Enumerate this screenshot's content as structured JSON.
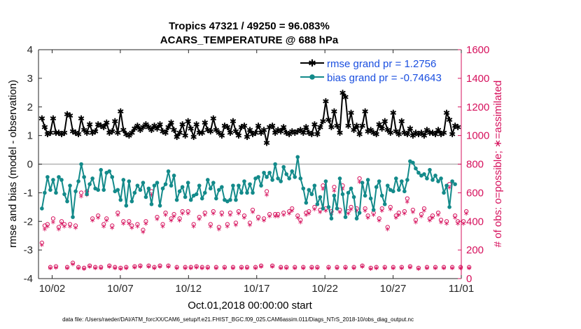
{
  "chart_data": {
    "type": "line",
    "title_line1": "Tropics 47321 / 49250 = 96.083%",
    "title_line2": "ACARS_TEMPERATURE @ 688 hPa",
    "xlabel": "Oct.01,2018 00:00:00 start",
    "ylabel_left": "rmse and bias (model - observation)",
    "ylabel_right": "# of obs: o=possible; ∗=assimilated",
    "xlim": [
      0,
      31
    ],
    "ylim_left": [
      -4,
      4
    ],
    "ylim_right": [
      0,
      1600
    ],
    "x_tick_values": [
      1,
      6,
      11,
      16,
      21,
      26,
      31
    ],
    "x_tick_labels": [
      "10/02",
      "10/07",
      "10/12",
      "10/17",
      "10/22",
      "10/27",
      "11/01"
    ],
    "y_left_ticks": [
      "4",
      "3",
      "2",
      "1",
      "0",
      "-1",
      "-2",
      "-3",
      "-4"
    ],
    "y_right_ticks": [
      "1600",
      "1400",
      "1200",
      "1000",
      "800",
      "600",
      "400",
      "200",
      "0"
    ],
    "zero_line": 0,
    "colors": {
      "rmse": "#000000",
      "bias": "#138a8a",
      "obs": "#d6105c",
      "legend_text": "#1a4fe0",
      "right_axis": "#d6105c"
    },
    "series": [
      {
        "name": "rmse grand pr = 1.2756",
        "role": "rmse",
        "values": [
          1.6,
          1.3,
          1.05,
          1.1,
          1.6,
          1.1,
          1.1,
          1.05,
          1.1,
          1.75,
          1.7,
          1.15,
          1.1,
          1.05,
          1.6,
          1.2,
          1.1,
          1.4,
          1.1,
          1.15,
          1.4,
          1.35,
          1.3,
          1.45,
          1.1,
          1.15,
          1.5,
          1.1,
          1.85,
          1.2,
          1.05,
          1.0,
          1.1,
          1.25,
          1.35,
          1.2,
          1.3,
          1.4,
          1.3,
          1.2,
          1.35,
          1.25,
          1.4,
          1.15,
          1.1,
          1.3,
          1.45,
          1.2,
          0.95,
          1.1,
          1.4,
          1.0,
          1.5,
          1.25,
          0.95,
          1.4,
          1.1,
          1.1,
          1.45,
          1.2,
          1.15,
          1.6,
          1.2,
          1.1,
          1.0,
          1.35,
          1.3,
          1.1,
          1.5,
          1.15,
          1.0,
          1.3,
          1.35,
          0.95,
          1.2,
          1.05,
          1.1,
          1.35,
          1.1,
          1.2,
          0.75,
          1.3,
          1.35,
          1.1,
          1.2,
          1.15,
          1.3,
          1.1,
          1.05,
          1.15,
          1.1,
          1.15,
          1.2,
          1.1,
          1.3,
          1.1,
          1.05,
          1.4,
          1.05,
          1.3,
          1.5,
          2.2,
          1.55,
          1.3,
          1.85,
          1.35,
          1.1,
          2.5,
          2.35,
          1.35,
          1.8,
          1.2,
          1.35,
          1.05,
          1.35,
          1.85,
          1.15,
          1.2,
          1.1,
          1.05,
          1.4,
          1.25,
          1.5,
          1.2,
          1.1,
          1.8,
          1.15,
          1.05,
          1.5,
          1.1,
          1.05,
          1.25,
          1.0,
          1.1,
          1.05,
          1.1,
          1.0,
          1.2,
          1.1,
          1.1,
          1.05,
          1.2,
          1.05,
          1.1,
          1.8,
          1.55,
          1.05,
          1.35,
          1.3
        ]
      },
      {
        "name": "bias grand pr = -0.74643",
        "role": "bias",
        "values": [
          -1.55,
          -1.0,
          -0.45,
          -0.9,
          -0.55,
          -1.0,
          -0.45,
          -0.55,
          -1.05,
          -1.3,
          -0.75,
          -1.85,
          -0.95,
          -0.6,
          0.0,
          -0.45,
          -1.05,
          -0.7,
          -0.5,
          -0.85,
          -0.9,
          -0.2,
          -0.9,
          -0.3,
          -0.25,
          -0.45,
          -0.95,
          -0.9,
          -1.25,
          -0.55,
          -1.45,
          -0.6,
          -1.3,
          -1.0,
          -0.75,
          -0.9,
          -0.65,
          -1.15,
          -0.85,
          -1.4,
          -0.75,
          -0.65,
          -1.45,
          -0.85,
          -0.7,
          -0.25,
          -0.75,
          -0.4,
          -1.25,
          -0.95,
          -0.8,
          -1.15,
          -0.65,
          -1.25,
          -1.1,
          -1.05,
          -0.75,
          -1.2,
          -1.0,
          -0.55,
          -0.85,
          -0.65,
          -1.2,
          -0.9,
          -0.8,
          -1.25,
          -1.3,
          -1.25,
          -0.75,
          -1.25,
          -0.75,
          -1.0,
          -0.6,
          -1.0,
          -0.7,
          -1.0,
          -0.5,
          -0.45,
          -0.75,
          -0.3,
          -0.45,
          -0.3,
          -0.55,
          0.0,
          -0.5,
          -0.6,
          -0.1,
          -0.35,
          -0.5,
          -0.25,
          -0.45,
          0.25,
          -0.5,
          -0.85,
          -1.35,
          -0.9,
          -1.05,
          -0.75,
          -1.4,
          -1.15,
          -1.55,
          -0.6,
          -1.5,
          -1.9,
          -1.1,
          -1.55,
          -0.5,
          -1.05,
          -1.85,
          -1.0,
          -0.85,
          -1.15,
          -1.9,
          -1.7,
          -0.65,
          -1.1,
          -0.55,
          -1.2,
          -1.6,
          -0.8,
          -0.6,
          -1.1,
          -1.4,
          -0.75,
          -0.9,
          -0.95,
          -0.5,
          -0.9,
          -0.6,
          -0.95,
          -0.55,
          0.1,
          0.05,
          -0.15,
          -0.3,
          -0.4,
          -0.35,
          -0.5,
          -0.2,
          -0.55,
          -0.4,
          -0.6,
          -0.5,
          -1.0,
          -0.75,
          -1.5,
          -0.6,
          -0.7
        ]
      },
      {
        "name": "obs possible (o)",
        "role": "obs_possible",
        "values": [
          250,
          370,
          380,
          80,
          420,
          85,
          360,
          400,
          380,
          80,
          380,
          110,
          370,
          80,
          600,
          75,
          610,
          90,
          420,
          80,
          440,
          80,
          380,
          420,
          90,
          370,
          80,
          460,
          75,
          400,
          80,
          400,
          370,
          85,
          380,
          90,
          340,
          400,
          90,
          610,
          80,
          430,
          90,
          380,
          460,
          90,
          420,
          450,
          80,
          420,
          470,
          80,
          470,
          80,
          380,
          85,
          430,
          80,
          460,
          80,
          380,
          470,
          80,
          360,
          460,
          80,
          380,
          460,
          80,
          390,
          470,
          80,
          440,
          80,
          390,
          480,
          80,
          430,
          90,
          420,
          610,
          450,
          90,
          450,
          450,
          80,
          460,
          80,
          470,
          490,
          80,
          440,
          410,
          80,
          460,
          470,
          80,
          500,
          80,
          480,
          650,
          490,
          80,
          470,
          640,
          80,
          480,
          650,
          80,
          470,
          500,
          80,
          490,
          700,
          90,
          490,
          440,
          75,
          460,
          80,
          420,
          490,
          80,
          360,
          500,
          80,
          440,
          460,
          80,
          470,
          560,
          85,
          480,
          410,
          75,
          450,
          490,
          80,
          420,
          440,
          80,
          460,
          410,
          80,
          400,
          660,
          80,
          440,
          400,
          80,
          400,
          470,
          80
        ]
      },
      {
        "name": "obs assimilated (∗)",
        "role": "obs_assimilated",
        "values": [
          240,
          350,
          370,
          78,
          400,
          80,
          350,
          390,
          370,
          78,
          370,
          105,
          360,
          78,
          580,
          73,
          590,
          88,
          410,
          78,
          430,
          78,
          370,
          410,
          88,
          360,
          78,
          450,
          73,
          390,
          78,
          390,
          360,
          83,
          370,
          88,
          330,
          390,
          88,
          590,
          78,
          420,
          88,
          370,
          450,
          88,
          410,
          440,
          78,
          410,
          460,
          78,
          460,
          78,
          370,
          83,
          420,
          78,
          450,
          78,
          370,
          460,
          78,
          350,
          450,
          78,
          370,
          450,
          78,
          380,
          460,
          78,
          430,
          78,
          380,
          470,
          78,
          420,
          88,
          410,
          590,
          440,
          88,
          440,
          440,
          78,
          450,
          78,
          460,
          480,
          78,
          430,
          400,
          78,
          450,
          460,
          78,
          490,
          78,
          470,
          630,
          480,
          78,
          460,
          620,
          78,
          470,
          630,
          78,
          460,
          490,
          78,
          480,
          680,
          88,
          480,
          430,
          73,
          450,
          78,
          410,
          480,
          78,
          350,
          490,
          78,
          430,
          450,
          78,
          460,
          540,
          83,
          470,
          400,
          73,
          440,
          480,
          78,
          410,
          430,
          78,
          450,
          400,
          78,
          390,
          640,
          78,
          430,
          390,
          78,
          390,
          460,
          78
        ]
      }
    ]
  },
  "legend": {
    "rmse_label": "rmse grand pr = 1.2756",
    "bias_label": "bias grand pr = -0.74643"
  },
  "footer": "data file: /Users/raeder/DAI/ATM_forcXX/CAM6_setup/f.e21.FHIST_BGC.f09_025.CAM6assim.011/Diags_NTrS_2018-10/obs_diag_output.nc"
}
